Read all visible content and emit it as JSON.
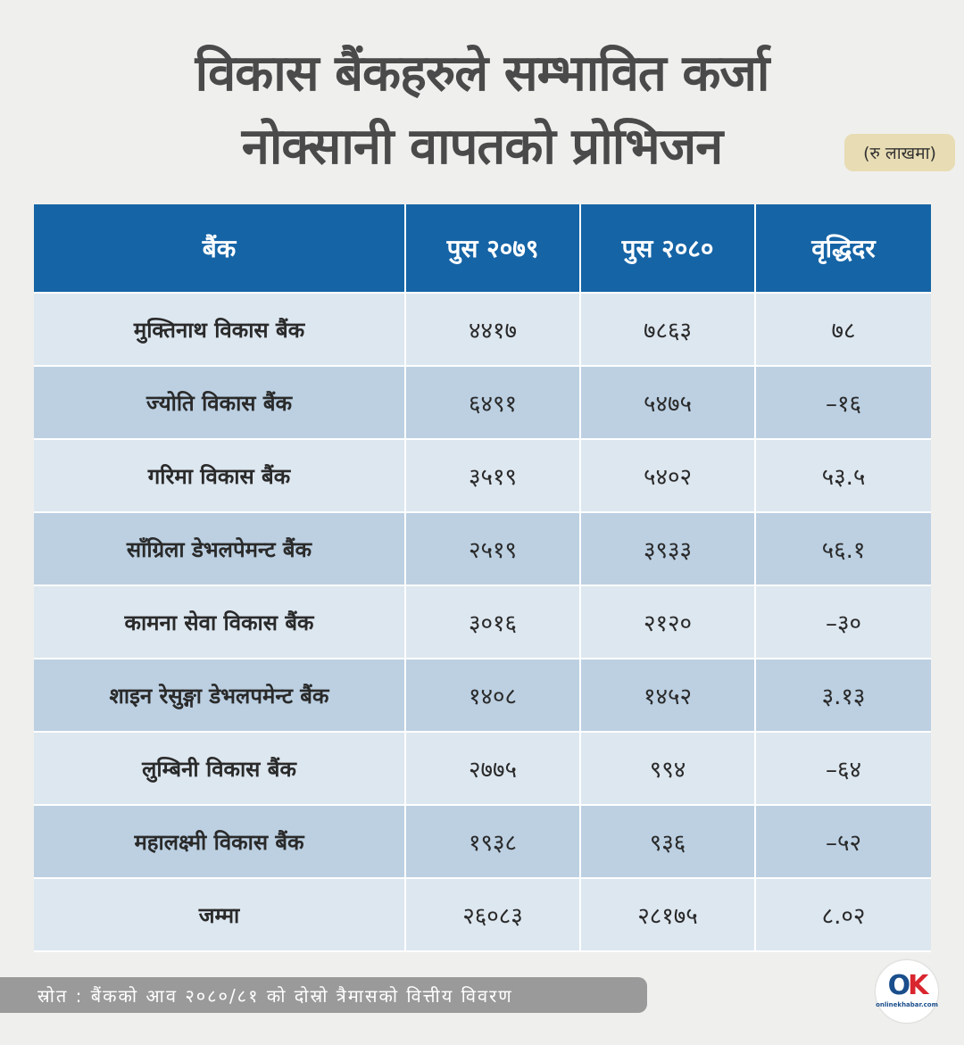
{
  "title": {
    "line1": "विकास बैंकहरुले सम्भावित कर्जा",
    "line2": "नोक्सानी वापतको प्रोभिजन"
  },
  "unit": "(रु लाखमा)",
  "table": {
    "headers": [
      "बैंक",
      "पुस २०७९",
      "पुस २०८०",
      "वृद्धिदर"
    ],
    "rows": [
      {
        "bank": "मुक्तिनाथ विकास बैंक",
        "push2079": "४४१७",
        "push2080": "७८६३",
        "growth": "७८"
      },
      {
        "bank": "ज्योति विकास बैंक",
        "push2079": "६४९१",
        "push2080": "५४७५",
        "growth": "–१६"
      },
      {
        "bank": "गरिमा विकास बैंक",
        "push2079": "३५१९",
        "push2080": "५४०२",
        "growth": "५३.५"
      },
      {
        "bank": "साँग्रिला डेभलपेमन्ट बैंक",
        "push2079": "२५१९",
        "push2080": "३९३३",
        "growth": "५६.१"
      },
      {
        "bank": "कामना सेवा विकास बैंक",
        "push2079": "३०१६",
        "push2080": "२१२०",
        "growth": "–३०"
      },
      {
        "bank": "शाइन रेसुङ्गा डेभलपमेन्ट बैंक",
        "push2079": "१४०८",
        "push2080": "१४५२",
        "growth": "३.१३"
      },
      {
        "bank": "लुम्बिनी विकास बैंक",
        "push2079": "२७७५",
        "push2080": "९९४",
        "growth": "–६४"
      },
      {
        "bank": "महालक्ष्मी विकास बैंक",
        "push2079": "१९३८",
        "push2080": "९३६",
        "growth": "–५२"
      },
      {
        "bank": "जम्मा",
        "push2079": "२६०८३",
        "push2080": "२८१७५",
        "growth": "८.०२"
      }
    ]
  },
  "source": "स्रोत : बैंकको आव २०८०/८१ को दोस्रो त्रैमासको वित्तीय विवरण",
  "logo": {
    "mark_o": "O",
    "mark_k": "K",
    "sub": "onlinekhabar.com"
  },
  "colors": {
    "header_bg": "#1564a6",
    "row_light": "#dde7f0",
    "row_dark": "#bcd0e2",
    "badge_bg": "#e8dcb4",
    "source_bg": "#9a9a9a",
    "logo_red": "#d9262e",
    "logo_blue": "#1a4e8c"
  }
}
